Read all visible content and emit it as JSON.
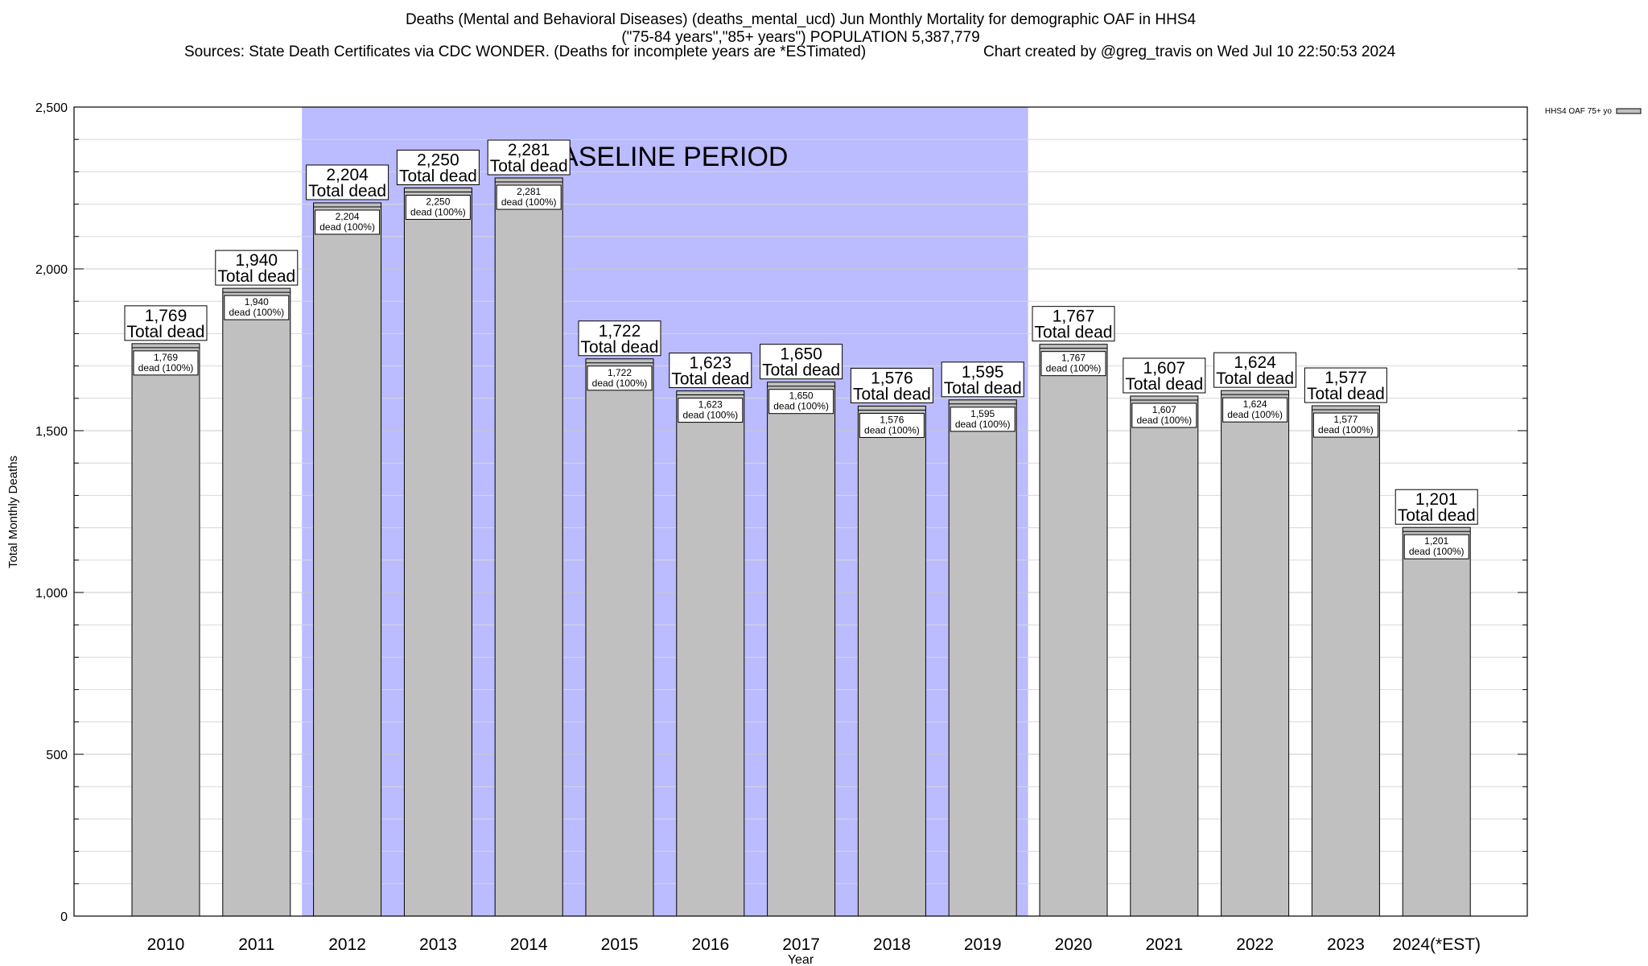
{
  "chart_data": {
    "type": "bar",
    "title": "Deaths (Mental and Behavioral Diseases) (deaths_mental_ucd) Jun Monthly Mortality for demographic OAF in HHS4",
    "subtitle": "(\"75-84 years\",\"85+ years\") POPULATION 5,387,779",
    "source": "Sources: State Death Certificates via CDC WONDER. (Deaths for incomplete years are *ESTimated)",
    "credit": "Chart created by @greg_travis on Wed Jul 10 22:50:53 2024",
    "xlabel": "Year",
    "ylabel": "Total Monthly Deaths",
    "ylim": [
      0,
      2500
    ],
    "yticks": [
      0,
      500,
      1000,
      1500,
      2000,
      2500
    ],
    "ytick_labels": [
      "0",
      "500",
      "1,000",
      "1,500",
      "2,000",
      "2,500"
    ],
    "grid": true,
    "categories": [
      "2010",
      "2011",
      "2012",
      "2013",
      "2014",
      "2015",
      "2016",
      "2017",
      "2018",
      "2019",
      "2020",
      "2021",
      "2022",
      "2023",
      "2024(*EST)"
    ],
    "series": [
      {
        "name": "HHS4 OAF 75+ yo",
        "values": [
          1769,
          1940,
          2204,
          2250,
          2281,
          1722,
          1623,
          1650,
          1576,
          1595,
          1767,
          1607,
          1624,
          1577,
          1201
        ],
        "color": "#c0c0c0"
      }
    ],
    "value_labels": [
      "1,769",
      "1,940",
      "2,204",
      "2,250",
      "2,281",
      "1,722",
      "1,623",
      "1,650",
      "1,576",
      "1,595",
      "1,767",
      "1,607",
      "1,624",
      "1,577",
      "1,201"
    ],
    "outer_label_suffix": "Total dead",
    "inner_label_suffix": "dead (100%)",
    "baseline_period": {
      "label": "BASELINE PERIOD",
      "start": "2012",
      "end": "2019",
      "color": "#bbbbff"
    },
    "legend": {
      "label": "HHS4 OAF 75+ yo",
      "position": "top-right"
    }
  }
}
